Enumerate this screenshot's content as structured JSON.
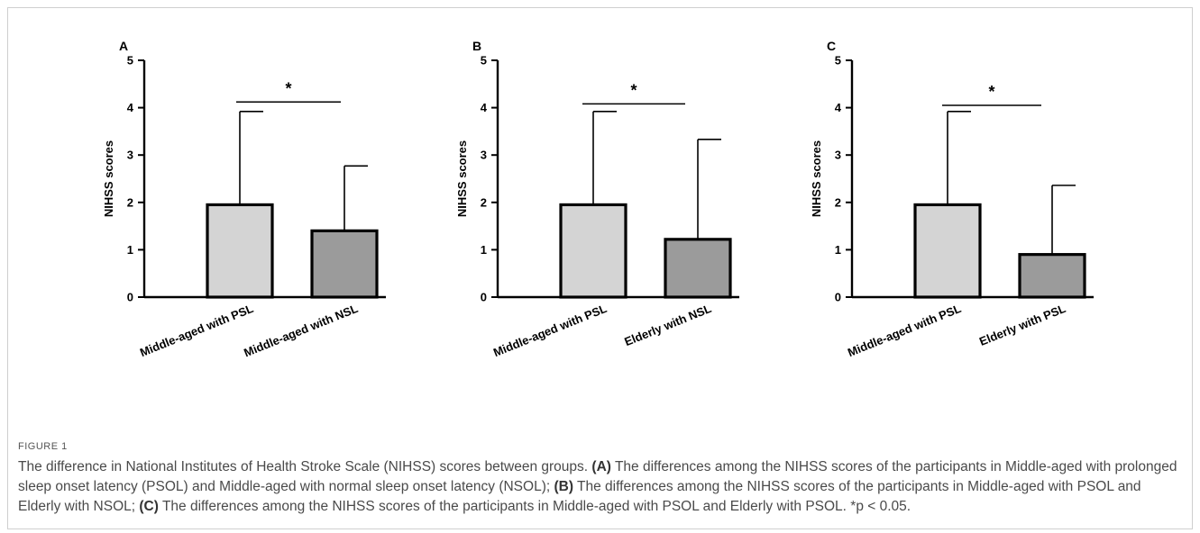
{
  "figure": {
    "label": "FIGURE 1",
    "caption": {
      "intro": "The difference in National Institutes of Health Stroke Scale (NIHSS) scores between groups.",
      "a_label": "(A)",
      "a_text": "The differences among the NIHSS scores of the participants in Middle-aged with prolonged sleep onset latency (PSOL) and Middle-aged with normal sleep onset latency (NSOL);",
      "b_label": "(B)",
      "b_text": "The differences among the NIHSS scores of the participants in Middle-aged with PSOL and Elderly with NSOL;",
      "c_label": "(C)",
      "c_text": "The differences among the NIHSS scores of the participants in Middle-aged with PSOL and Elderly with PSOL. *p < 0.05."
    }
  },
  "colors": {
    "bar_light": "#d4d4d4",
    "bar_dark": "#9b9b9b",
    "stroke": "#000000"
  },
  "chart_data": [
    {
      "type": "bar",
      "panel": "A",
      "ylabel": "NIHSS scores",
      "ylim": [
        0,
        5
      ],
      "yticks": [
        "0",
        "1",
        "2",
        "3",
        "4",
        "5"
      ],
      "categories": [
        "Middle-aged with PSL",
        "Middle-aged with NSL"
      ],
      "values": [
        1.95,
        1.4
      ],
      "error_upper": [
        3.92,
        2.77
      ],
      "significance": {
        "label": "*",
        "y": 4.12
      }
    },
    {
      "type": "bar",
      "panel": "B",
      "ylabel": "NIHSS scores",
      "ylim": [
        0,
        5
      ],
      "yticks": [
        "0",
        "1",
        "2",
        "3",
        "4",
        "5"
      ],
      "categories": [
        "Middle-aged with PSL",
        "Elderly with NSL"
      ],
      "values": [
        1.95,
        1.22
      ],
      "error_upper": [
        3.92,
        3.33
      ],
      "significance": {
        "label": "*",
        "y": 4.08
      }
    },
    {
      "type": "bar",
      "panel": "C",
      "ylabel": "NIHSS scores",
      "ylim": [
        0,
        5
      ],
      "yticks": [
        "0",
        "1",
        "2",
        "3",
        "4",
        "5"
      ],
      "categories": [
        "Middle-aged with PSL",
        "Elderly with PSL"
      ],
      "values": [
        1.95,
        0.9
      ],
      "error_upper": [
        3.92,
        2.36
      ],
      "significance": {
        "label": "*",
        "y": 4.05
      }
    }
  ]
}
